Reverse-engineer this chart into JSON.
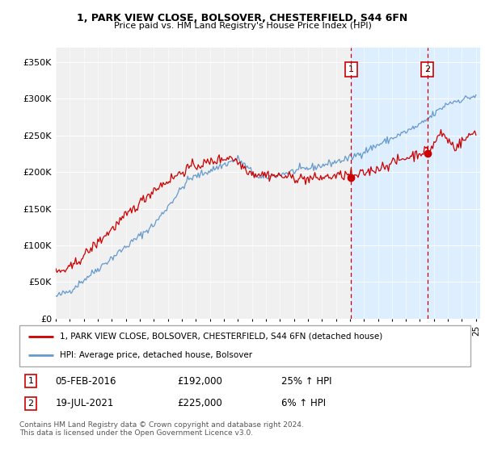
{
  "title1": "1, PARK VIEW CLOSE, BOLSOVER, CHESTERFIELD, S44 6FN",
  "title2": "Price paid vs. HM Land Registry's House Price Index (HPI)",
  "legend1": "1, PARK VIEW CLOSE, BOLSOVER, CHESTERFIELD, S44 6FN (detached house)",
  "legend2": "HPI: Average price, detached house, Bolsover",
  "sale1_date": 2016.09,
  "sale1_label": "05-FEB-2016",
  "sale1_price": 192000,
  "sale1_pct": "25% ↑ HPI",
  "sale2_date": 2021.54,
  "sale2_label": "19-JUL-2021",
  "sale2_price": 225000,
  "sale2_pct": "6% ↑ HPI",
  "ylim_max": 370000,
  "xlim_min": 1995.0,
  "xlim_max": 2025.3,
  "footer": "Contains HM Land Registry data © Crown copyright and database right 2024.\nThis data is licensed under the Open Government Licence v3.0.",
  "line_color_red": "#cc0000",
  "line_color_blue": "#6699cc",
  "shade_color": "#ddeeff",
  "bg_color": "#f0f0f0"
}
